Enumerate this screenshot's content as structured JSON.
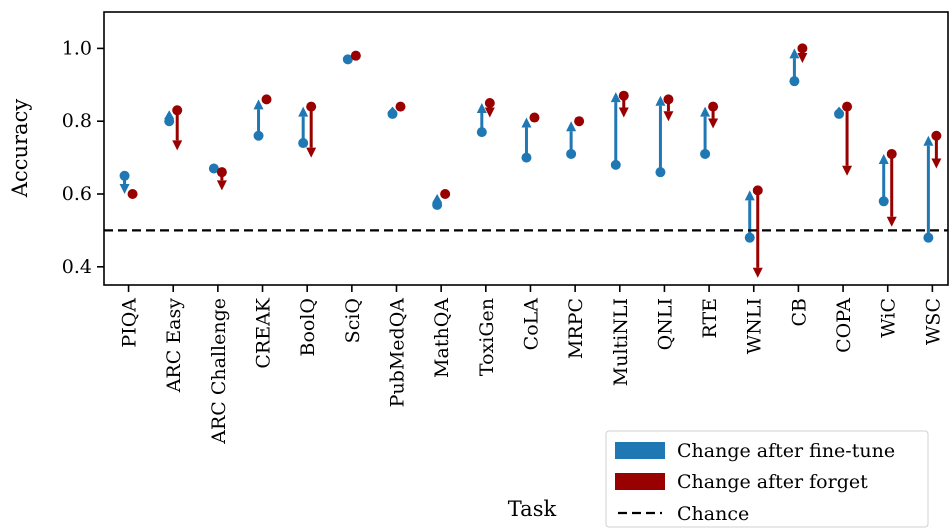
{
  "chart_data": {
    "type": "scatter",
    "xlabel": "Task",
    "ylabel": "Accuracy",
    "ylim": [
      0.35,
      1.1
    ],
    "yticks": [
      0.4,
      0.6,
      0.8,
      1.0
    ],
    "ytick_labels": [
      "0.4",
      "0.6",
      "0.8",
      "1.0"
    ],
    "categories": [
      "PIQA",
      "ARC Easy",
      "ARC Challenge",
      "CREAK",
      "BoolQ",
      "SciQ",
      "PubMedQA",
      "MathQA",
      "ToxiGen",
      "CoLA",
      "MRPC",
      "MultiNLI",
      "QNLI",
      "RTE",
      "WNLI",
      "CB",
      "COPA",
      "WiC",
      "WSC"
    ],
    "series": [
      {
        "name": "Change after fine-tune",
        "color": "#1f77b4",
        "start": [
          0.65,
          0.8,
          0.67,
          0.76,
          0.74,
          0.97,
          0.82,
          0.57,
          0.77,
          0.7,
          0.71,
          0.68,
          0.66,
          0.71,
          0.48,
          0.91,
          0.82,
          0.58,
          0.48
        ],
        "end": [
          0.6,
          0.83,
          0.66,
          0.86,
          0.84,
          0.98,
          0.84,
          0.6,
          0.85,
          0.81,
          0.8,
          0.88,
          0.87,
          0.84,
          0.61,
          1.0,
          0.84,
          0.71,
          0.76
        ]
      },
      {
        "name": "Change after forget",
        "color": "#990000",
        "start": [
          0.6,
          0.83,
          0.66,
          0.86,
          0.84,
          0.98,
          0.84,
          0.6,
          0.85,
          0.81,
          0.8,
          0.87,
          0.86,
          0.84,
          0.61,
          1.0,
          0.84,
          0.71,
          0.76
        ],
        "end": [
          0.59,
          0.72,
          0.61,
          0.85,
          0.7,
          0.97,
          0.83,
          0.59,
          0.81,
          0.8,
          0.79,
          0.81,
          0.8,
          0.78,
          0.37,
          0.96,
          0.65,
          0.51,
          0.67
        ]
      }
    ],
    "reference_line": {
      "y": 0.5,
      "label": "Chance",
      "style": "dashed"
    },
    "grid": false,
    "legend_position": "bottom-right"
  }
}
